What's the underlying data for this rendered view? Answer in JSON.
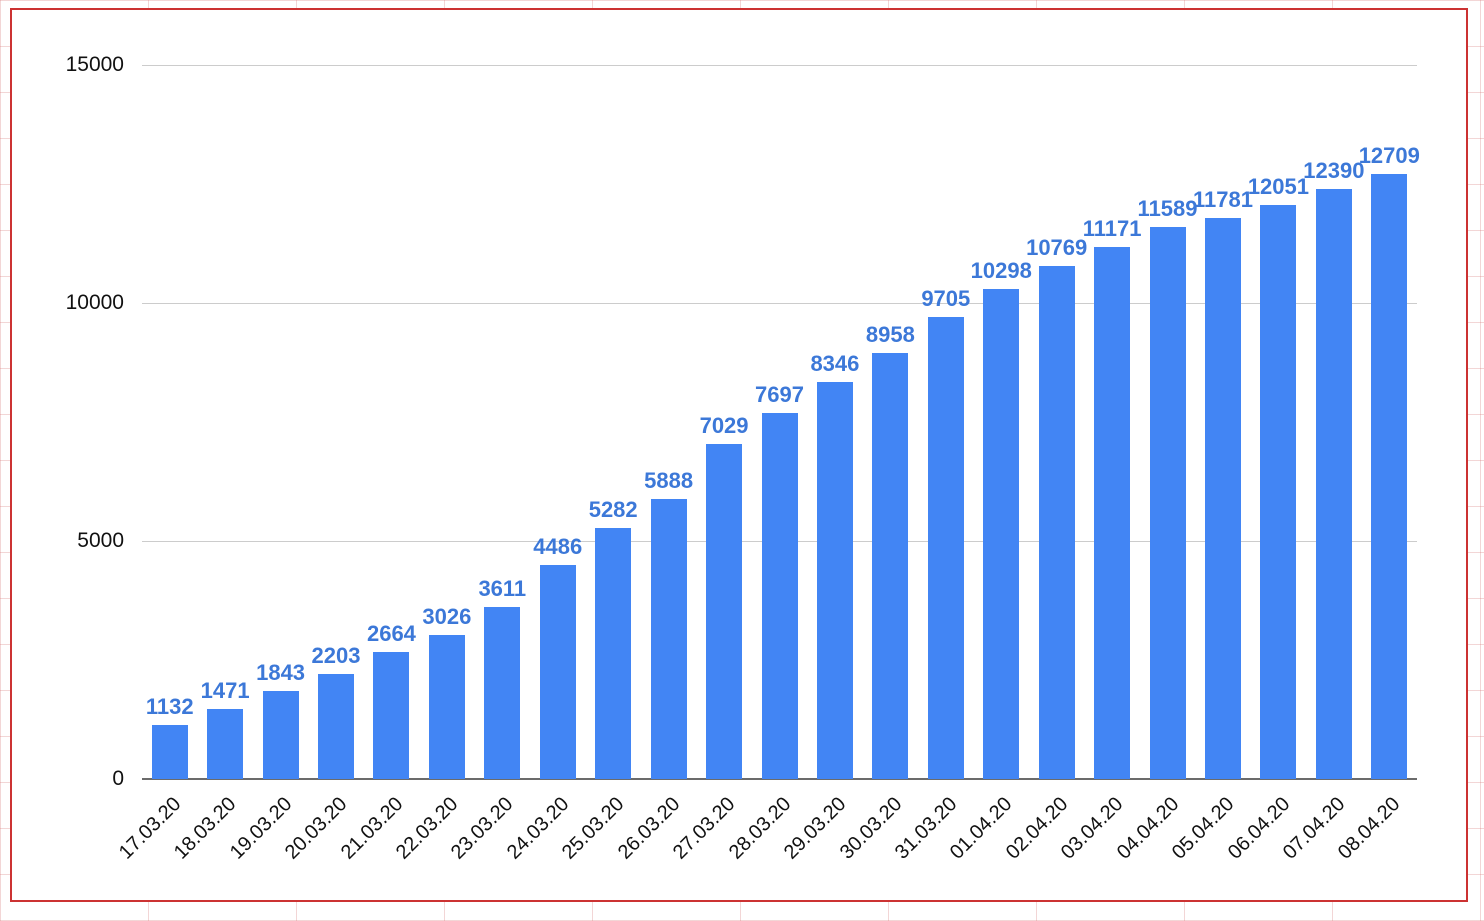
{
  "chart_data": {
    "type": "bar",
    "title": "",
    "xlabel": "",
    "ylabel": "",
    "categories": [
      "17.03.20",
      "18.03.20",
      "19.03.20",
      "20.03.20",
      "21.03.20",
      "22.03.20",
      "23.03.20",
      "24.03.20",
      "25.03.20",
      "26.03.20",
      "27.03.20",
      "28.03.20",
      "29.03.20",
      "30.03.20",
      "31.03.20",
      "01.04.20",
      "02.04.20",
      "03.04.20",
      "04.04.20",
      "05.04.20",
      "06.04.20",
      "07.04.20",
      "08.04.20"
    ],
    "values": [
      1132,
      1471,
      1843,
      2203,
      2664,
      3026,
      3611,
      4486,
      5282,
      5888,
      7029,
      7697,
      8346,
      8958,
      9705,
      10298,
      10769,
      11171,
      11589,
      11781,
      12051,
      12390,
      12709
    ],
    "data_labels_visible": true,
    "ylim": [
      0,
      15000
    ],
    "yticks": [
      0,
      5000,
      10000,
      15000
    ],
    "grid": true,
    "legend": "none",
    "colors": {
      "bar": "#4285f4",
      "data_label": "#3c78d8",
      "gridline": "#cccccc",
      "axis_line": "#6b6b6b",
      "tick_text": "#111111",
      "frame_border": "#cc3232"
    }
  }
}
